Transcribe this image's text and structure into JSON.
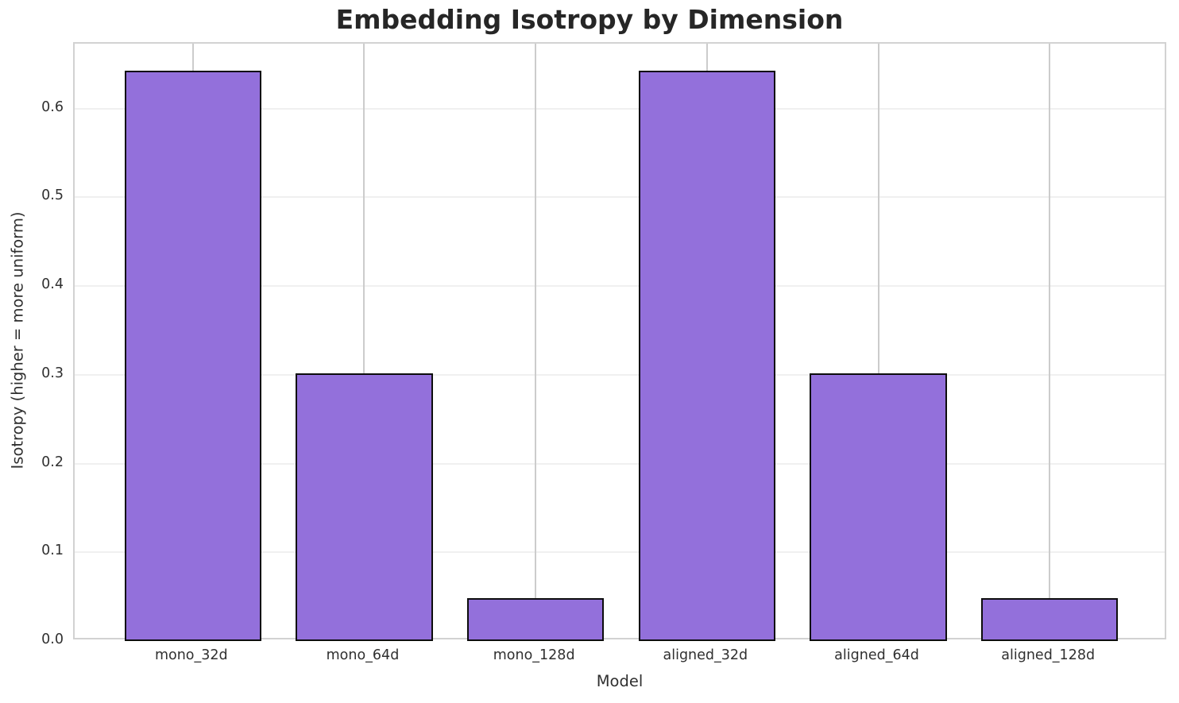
{
  "chart_data": {
    "type": "bar",
    "title": "Embedding Isotropy by Dimension",
    "xlabel": "Model",
    "ylabel": "Isotropy (higher = more uniform)",
    "categories": [
      "mono_32d",
      "mono_64d",
      "mono_128d",
      "aligned_32d",
      "aligned_64d",
      "aligned_128d"
    ],
    "values": [
      0.643,
      0.302,
      0.048,
      0.643,
      0.302,
      0.048
    ],
    "yticks": [
      0.0,
      0.1,
      0.2,
      0.3,
      0.4,
      0.5,
      0.6
    ],
    "ylim": [
      0,
      0.673
    ],
    "xlim": [
      -0.69,
      5.69
    ],
    "bar_band_width": 0.8,
    "grid": true,
    "legend_position": "none",
    "colors": {
      "bar_fill": "#9370DB",
      "bar_edge": "#0d0d0d",
      "grid_horizontal": "#f0f0f0",
      "grid_vertical": "#cccccc",
      "spine": "#d2d2d2",
      "title_text": "#262626",
      "tick_text": "#303030",
      "background": "#ffffff"
    }
  }
}
